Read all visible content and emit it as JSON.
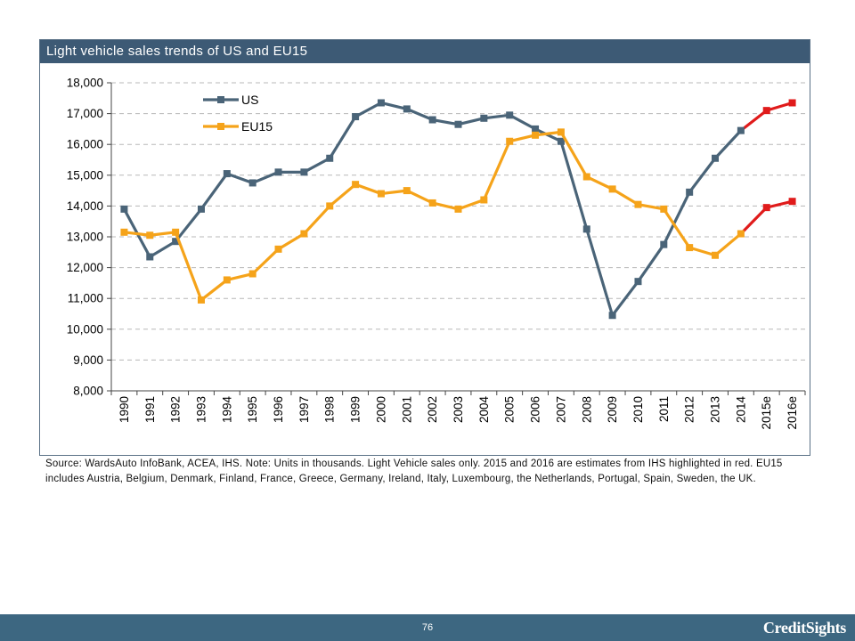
{
  "slide": {
    "title": "Light vehicle sales trends of US and EU15",
    "source_note": "Source: WardsAuto InfoBank, ACEA, IHS. Note: Units in thousands. Light Vehicle sales only. 2015 and 2016 are estimates from IHS highlighted in red. EU15 includes Austria, Belgium, Denmark, Finland, France, Greece, Germany, Ireland, Italy, Luxembourg, the Netherlands, Portugal, Spain, Sweden, the UK.",
    "page_number": "76",
    "brand": "CreditSights"
  },
  "chart_data": {
    "type": "line",
    "title": "Light vehicle sales trends of US and EU15",
    "categories": [
      "1990",
      "1991",
      "1992",
      "1993",
      "1994",
      "1995",
      "1996",
      "1997",
      "1998",
      "1999",
      "2000",
      "2001",
      "2002",
      "2003",
      "2004",
      "2005",
      "2006",
      "2007",
      "2008",
      "2009",
      "2010",
      "2011",
      "2012",
      "2013",
      "2014",
      "2015e",
      "2016e"
    ],
    "series": [
      {
        "name": "US",
        "color": "#4a6478",
        "values": [
          13900,
          12350,
          12850,
          13900,
          15050,
          14750,
          15100,
          15100,
          15550,
          16900,
          17350,
          17150,
          16800,
          16650,
          16850,
          16950,
          16500,
          16100,
          13250,
          10450,
          11550,
          12750,
          14450,
          15550,
          16450,
          17100,
          17350
        ]
      },
      {
        "name": "EU15",
        "color": "#f5a31a",
        "values": [
          13150,
          13050,
          13150,
          10950,
          11600,
          11800,
          12600,
          13100,
          14000,
          14700,
          14400,
          14500,
          14100,
          13900,
          14200,
          16100,
          16300,
          16400,
          14950,
          14550,
          14050,
          13900,
          12650,
          12400,
          13100,
          13950,
          14150
        ]
      }
    ],
    "estimate_color": "#e01b1b",
    "estimate_categories": [
      "2015e",
      "2016e"
    ],
    "ylim": [
      8000,
      18000
    ],
    "yticks": [
      8000,
      9000,
      10000,
      11000,
      12000,
      13000,
      14000,
      15000,
      16000,
      17000,
      18000
    ],
    "ytick_labels": [
      "8,000",
      "9,000",
      "10,000",
      "11,000",
      "12,000",
      "13,000",
      "14,000",
      "15,000",
      "16,000",
      "17,000",
      "18,000"
    ],
    "grid": true,
    "legend_position": "top-left",
    "xlabel": "",
    "ylabel": ""
  }
}
